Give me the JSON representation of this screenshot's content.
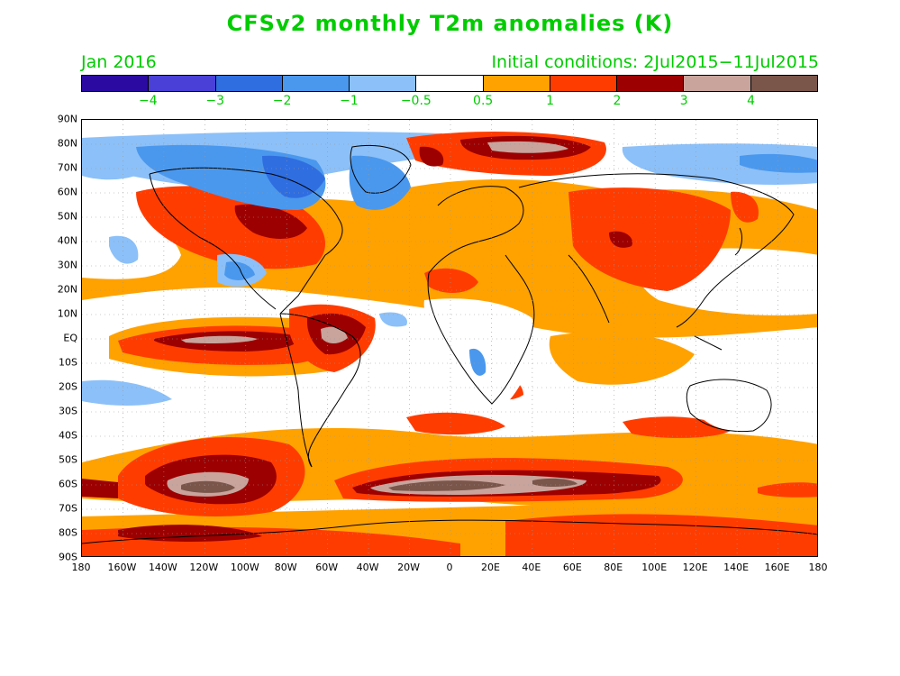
{
  "title": "CFSv2 monthly T2m anomalies (K)",
  "month_label": "Jan 2016",
  "ic_label": "Initial conditions: 2Jul2015−11Jul2015",
  "colorbar": {
    "colors": [
      "#2a0aa0",
      "#4a3fd6",
      "#2f6ee0",
      "#4a98ee",
      "#8cc0f8",
      "#ffffff",
      "#ffa200",
      "#ff3c00",
      "#9c0000",
      "#c8a49c",
      "#7a554a"
    ],
    "labels": [
      "−4",
      "−3",
      "−2",
      "−1",
      "−0.5",
      "0.5",
      "1",
      "2",
      "3",
      "4"
    ]
  },
  "lat_labels": [
    "90N",
    "80N",
    "70N",
    "60N",
    "50N",
    "40N",
    "30N",
    "20N",
    "10N",
    "EQ",
    "10S",
    "20S",
    "30S",
    "40S",
    "50S",
    "60S",
    "70S",
    "80S",
    "90S"
  ],
  "lon_labels": [
    "180",
    "160W",
    "140W",
    "120W",
    "100W",
    "80W",
    "60W",
    "40W",
    "20W",
    "0",
    "20E",
    "40E",
    "60E",
    "80E",
    "100E",
    "120E",
    "140E",
    "160E",
    "180"
  ]
}
